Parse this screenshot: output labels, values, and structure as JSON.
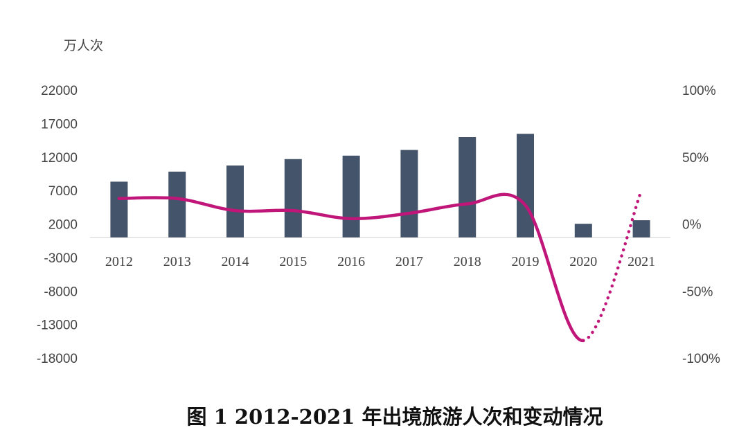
{
  "chart_data": {
    "type": "bar",
    "title": "图 1 2012-2021 年出境旅游人次和变动情况",
    "y_unit_label": "万人次",
    "categories": [
      "2012",
      "2013",
      "2014",
      "2015",
      "2016",
      "2017",
      "2018",
      "2019",
      "2020",
      "2021"
    ],
    "left_axis": {
      "ticks": [
        "22000",
        "17000",
        "12000",
        "7000",
        "2000",
        "-3000",
        "-8000",
        "-13000",
        "-18000"
      ],
      "range": [
        -18000,
        22000
      ]
    },
    "right_axis": {
      "ticks": [
        "100%",
        "50%",
        "0%",
        "-50%",
        "-100%"
      ],
      "range": [
        -100,
        100
      ]
    },
    "series": [
      {
        "type": "bar",
        "axis": "left",
        "color": "#44546a",
        "values": [
          8318,
          9819,
          10728,
          11689,
          12203,
          13051,
          14972,
          15463,
          2033,
          2562
        ]
      },
      {
        "type": "line",
        "axis": "right",
        "color": "#c0167a",
        "values_percent": [
          19,
          19,
          10,
          10,
          4,
          8,
          15,
          14,
          -87,
          25
        ],
        "dotted_segment_from_index": 8
      }
    ],
    "grid": false,
    "legend": "none"
  }
}
